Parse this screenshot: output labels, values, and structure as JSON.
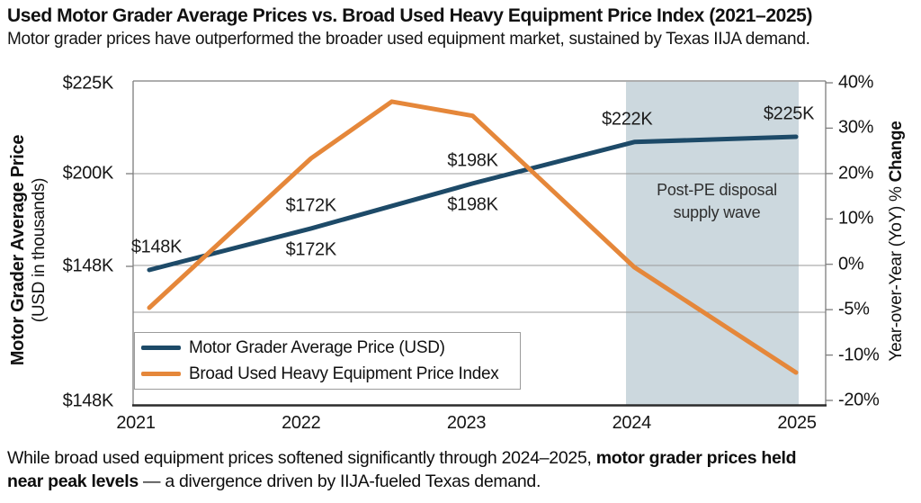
{
  "header": {
    "title": "Used Motor Grader Average Prices vs. Broad Used Heavy Equipment Price Index (2021–2025)",
    "subtitle": "Motor grader prices have outperformed the broader used equipment market, sustained by Texas IIJA demand."
  },
  "chart_data": {
    "type": "line",
    "title": "Used Motor Grader Average Prices vs. Broad Used Heavy Equipment Price Index (2021–2025)",
    "x_tick_labels": [
      "2021",
      "2022",
      "2023",
      "2024",
      "2025"
    ],
    "left_axis": {
      "title": "Motor Grader Average Price",
      "subtitle": "(USD in thousands)",
      "tick_labels": [
        "$225K",
        "$200K",
        "$148K",
        "$148K"
      ]
    },
    "right_axis": {
      "title_regular": "Year-over-Year (YoY) % ",
      "title_bold": "Change",
      "tick_labels": [
        "40%",
        "30%",
        "20%",
        "10%",
        "0%",
        "-5%",
        "-10%",
        "-20%"
      ]
    },
    "series": [
      {
        "name": "Motor Grader Average Price (USD)",
        "axis": "left",
        "color": "#1d4a68",
        "unit": "USD thousands",
        "x": [
          2021,
          2022,
          2023,
          2024,
          2025
        ],
        "values": [
          148,
          172,
          198,
          222,
          225
        ],
        "point_labels": [
          {
            "year": 2021,
            "text": "$148K",
            "placements": [
              "above"
            ]
          },
          {
            "year": 2022,
            "text": "$172K",
            "placements": [
              "above",
              "below"
            ]
          },
          {
            "year": 2023,
            "text": "$198K",
            "placements": [
              "above",
              "below"
            ]
          },
          {
            "year": 2024,
            "text": "$222K",
            "placements": [
              "above"
            ]
          },
          {
            "year": 2025,
            "text": "$225K",
            "placements": [
              "above"
            ]
          }
        ]
      },
      {
        "name": "Broad Used Heavy Equipment Price Index",
        "axis": "right",
        "color": "#e5873a",
        "unit": "YoY % change",
        "x": [
          2021,
          2022,
          2022.5,
          2023,
          2024,
          2025
        ],
        "values": [
          -5,
          23,
          35,
          32,
          0,
          -13
        ],
        "point_labels": []
      }
    ],
    "shaded_region": {
      "from_year": 2024,
      "to_year": 2025,
      "color": "#ccd8de",
      "label_line1": "Post-PE disposal",
      "label_line2": "supply wave"
    },
    "legend": {
      "entries": [
        {
          "label": "Motor Grader Average Price (USD)",
          "color": "#1d4a68"
        },
        {
          "label": "Broad Used Heavy Equipment Price Index",
          "color": "#e5873a"
        }
      ]
    },
    "grid": "horizontal-partial",
    "legend_position": "lower-left-inside"
  },
  "footer": {
    "line1_regular": "While broad used equipment prices softened significantly through 2024–2025, ",
    "line1_bold": "motor grader prices held",
    "line2_bold": "near peak levels",
    "line2_regular": " — a divergence driven by IIJA-fueled Texas demand."
  }
}
